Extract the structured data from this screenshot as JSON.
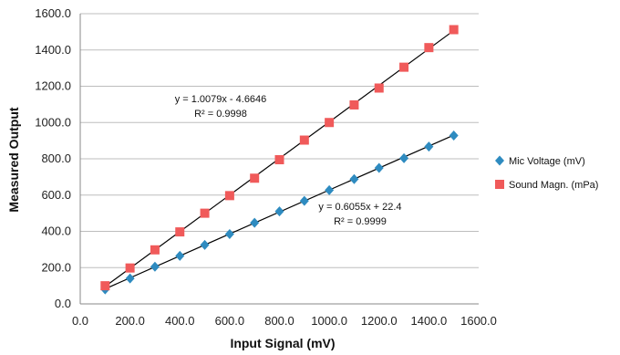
{
  "chart_data": {
    "type": "scatter",
    "title": "",
    "xlabel": "Input Signal  (mV)",
    "ylabel": "Measured Output",
    "xlim": [
      0,
      1600
    ],
    "ylim": [
      0,
      1600
    ],
    "x_ticks": [
      0,
      200,
      400,
      600,
      800,
      1000,
      1200,
      1400,
      1600
    ],
    "y_ticks": [
      0,
      200,
      400,
      600,
      800,
      1000,
      1200,
      1400,
      1600
    ],
    "x_tick_labels": [
      "0.0",
      "200.0",
      "400.0",
      "600.0",
      "800.0",
      "1000.0",
      "1200.0",
      "1400.0",
      "1600.0"
    ],
    "y_tick_labels": [
      "0.0",
      "200.0",
      "400.0",
      "600.0",
      "800.0",
      "1000.0",
      "1200.0",
      "1400.0",
      "1600.0"
    ],
    "grid": "horizontal",
    "legend_position": "right",
    "series": [
      {
        "name": "Mic Voltage (mV)",
        "marker": "diamond",
        "color": "#2E8BC0",
        "x": [
          100,
          200,
          300,
          400,
          500,
          600,
          700,
          800,
          900,
          1000,
          1100,
          1200,
          1300,
          1400,
          1500
        ],
        "y": [
          80,
          140,
          205,
          265,
          325,
          385,
          447,
          510,
          568,
          627,
          688,
          750,
          803,
          867,
          928
        ],
        "trendline": {
          "slope": 0.6055,
          "intercept": 22.4,
          "equation": "y = 0.6055x + 22.4",
          "r_squared": "R² = 0.9999"
        }
      },
      {
        "name": "Sound Magn. (mPa)",
        "marker": "square",
        "color": "#F05A5A",
        "x": [
          100,
          200,
          300,
          400,
          500,
          600,
          700,
          800,
          900,
          1000,
          1100,
          1200,
          1300,
          1400,
          1500
        ],
        "y": [
          100,
          198,
          298,
          397,
          500,
          597,
          693,
          795,
          903,
          1000,
          1097,
          1190,
          1305,
          1413,
          1512
        ],
        "trendline": {
          "slope": 1.0079,
          "intercept": -4.6646,
          "equation": "y = 1.0079x - 4.6646",
          "r_squared": "R² = 0.9998"
        }
      }
    ]
  }
}
